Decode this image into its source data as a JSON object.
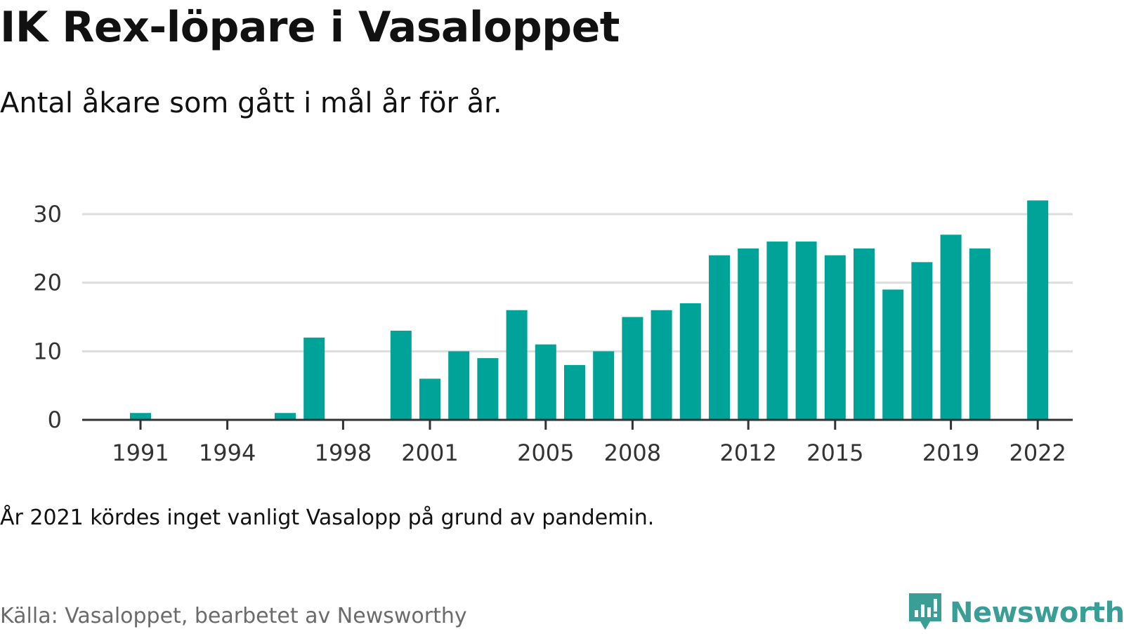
{
  "title": "IK Rex-löpare i Vasaloppet",
  "subtitle": "Antal åkare som gått i mål år för år.",
  "note": "År 2021 kördes inget vanligt Vasalopp på grund av pandemin.",
  "source": "Källa: Vasaloppet, bearbetet av Newsworthy",
  "brand": {
    "name": "Newsworthy",
    "icon": "newsworthy-bar-chart-icon",
    "color": "#3a9e96"
  },
  "chart_data": {
    "type": "bar",
    "title": "IK Rex-löpare i Vasaloppet",
    "subtitle": "Antal åkare som gått i mål år för år.",
    "xlabel": "",
    "ylabel": "",
    "bar_color": "#00a398",
    "grid": true,
    "ylim": [
      0,
      33
    ],
    "y_ticks": [
      0,
      10,
      20,
      30
    ],
    "x_ticks": [
      1991,
      1994,
      1998,
      2001,
      2005,
      2008,
      2012,
      2015,
      2019,
      2022
    ],
    "categories": [
      1991,
      1992,
      1993,
      1994,
      1995,
      1996,
      1997,
      1998,
      1999,
      2000,
      2001,
      2002,
      2003,
      2004,
      2005,
      2006,
      2007,
      2008,
      2009,
      2010,
      2011,
      2012,
      2013,
      2014,
      2015,
      2016,
      2017,
      2018,
      2019,
      2020,
      2021,
      2022
    ],
    "values": [
      1,
      0,
      0,
      0,
      0,
      1,
      12,
      0,
      0,
      13,
      6,
      10,
      9,
      16,
      11,
      8,
      10,
      15,
      16,
      17,
      24,
      25,
      26,
      26,
      24,
      25,
      19,
      23,
      27,
      25,
      null,
      32
    ]
  }
}
